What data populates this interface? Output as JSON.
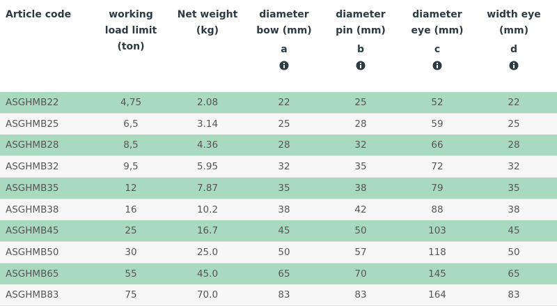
{
  "table": {
    "header": [
      {
        "lines": [
          "Article code"
        ]
      },
      {
        "lines": [
          "working",
          "load limit",
          "(ton)"
        ]
      },
      {
        "lines": [
          "Net weight",
          "(kg)"
        ]
      },
      {
        "lines": [
          "diameter",
          "bow (mm)"
        ],
        "letter": "a"
      },
      {
        "lines": [
          "diameter",
          "pin (mm)"
        ],
        "letter": "b"
      },
      {
        "lines": [
          "diameter",
          "eye (mm)"
        ],
        "letter": "c"
      },
      {
        "lines": [
          "width eye",
          "(mm)"
        ],
        "letter": "d"
      }
    ],
    "rows": [
      [
        "ASGHMB22",
        "4,75",
        "2.08",
        "22",
        "25",
        "52",
        "22"
      ],
      [
        "ASGHMB25",
        "6,5",
        "3.14",
        "25",
        "28",
        "59",
        "25"
      ],
      [
        "ASGHMB28",
        "8,5",
        "4.36",
        "28",
        "32",
        "66",
        "28"
      ],
      [
        "ASGHMB32",
        "9,5",
        "5.95",
        "32",
        "35",
        "72",
        "32"
      ],
      [
        "ASGHMB35",
        "12",
        "7.87",
        "35",
        "38",
        "79",
        "35"
      ],
      [
        "ASGHMB38",
        "16",
        "10.2",
        "38",
        "42",
        "88",
        "38"
      ],
      [
        "ASGHMB45",
        "25",
        "16.7",
        "45",
        "50",
        "103",
        "45"
      ],
      [
        "ASGHMB50",
        "30",
        "25.0",
        "50",
        "57",
        "118",
        "50"
      ],
      [
        "ASGHMB65",
        "55",
        "45.0",
        "65",
        "70",
        "145",
        "65"
      ],
      [
        "ASGHMB83",
        "75",
        "70.0",
        "83",
        "83",
        "164",
        "83"
      ]
    ]
  }
}
